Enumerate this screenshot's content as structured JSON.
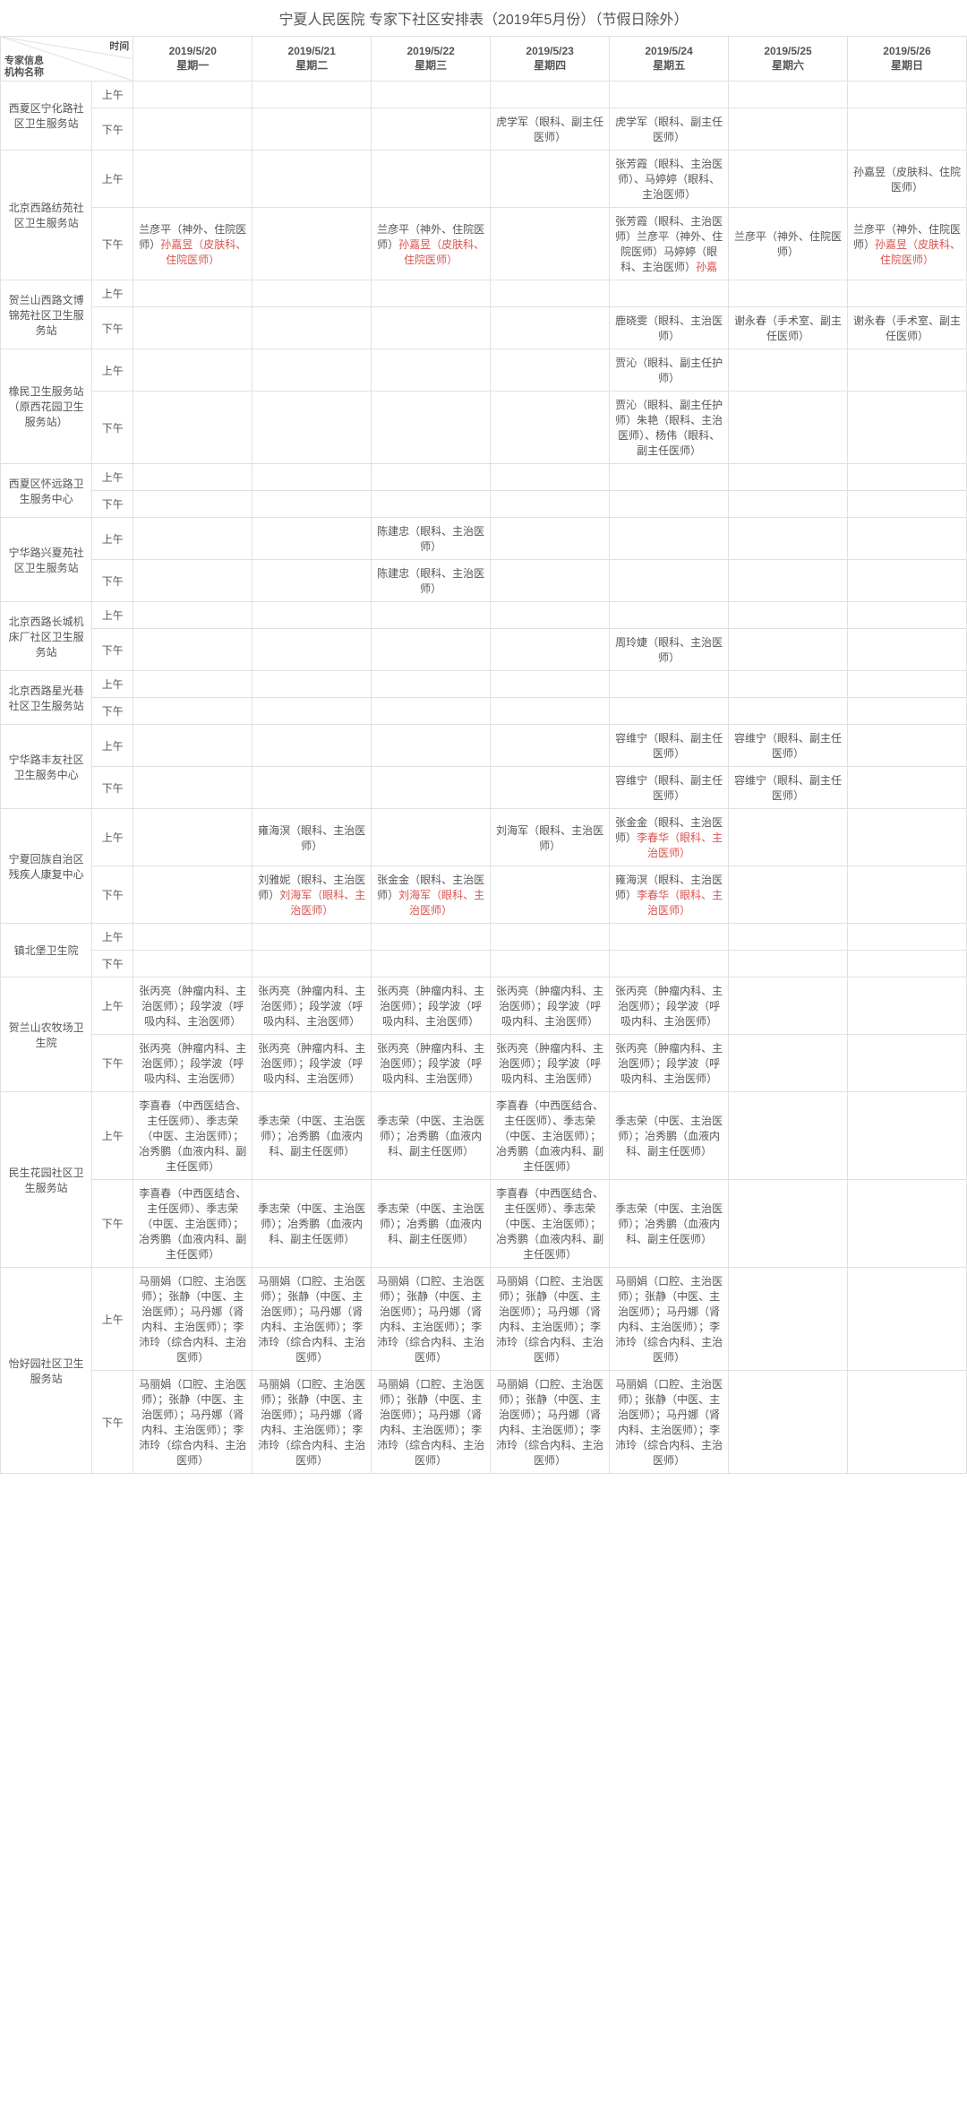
{
  "title": "宁夏人民医院 专家下社区安排表（2019年5月份）（节假日除外）",
  "diagHeader": {
    "topRight": "时间",
    "mid": "专家信息",
    "botLeft": "机构名称"
  },
  "periods": {
    "am": "上午",
    "pm": "下午"
  },
  "dates": [
    {
      "date": "2019/5/20",
      "weekday": "星期一"
    },
    {
      "date": "2019/5/21",
      "weekday": "星期二"
    },
    {
      "date": "2019/5/22",
      "weekday": "星期三"
    },
    {
      "date": "2019/5/23",
      "weekday": "星期四"
    },
    {
      "date": "2019/5/24",
      "weekday": "星期五"
    },
    {
      "date": "2019/5/25",
      "weekday": "星期六"
    },
    {
      "date": "2019/5/26",
      "weekday": "星期日"
    }
  ],
  "orgs": [
    {
      "name": "西夏区宁化路社区卫生服务站",
      "am": [
        "",
        "",
        "",
        "",
        "",
        "",
        ""
      ],
      "pm": [
        "",
        "",
        "",
        "虎学军（眼科、副主任医师）",
        "虎学军（眼科、副主任医师）",
        "",
        ""
      ]
    },
    {
      "name": "北京西路纺苑社区卫生服务站",
      "am": [
        "",
        "",
        "",
        "",
        "张芳霞（眼科、主治医师）、马婷婷（眼科、主治医师）",
        "",
        "孙嘉昱（皮肤科、住院医师）"
      ],
      "pm": [
        [
          {
            "t": "兰彦平（神外、住院医师）"
          },
          {
            "t": "孙嘉昱（皮肤科、住院医师）",
            "r": true
          }
        ],
        "",
        [
          {
            "t": "兰彦平（神外、住院医师）"
          },
          {
            "t": "孙嘉昱（皮肤科、住院医师）",
            "r": true
          }
        ],
        "",
        [
          {
            "t": "张芳霞（眼科、主治医师）兰彦平（神外、住院医师）马婷婷（眼科、主治医师）"
          },
          {
            "t": "孙嘉",
            "r": true
          }
        ],
        "兰彦平（神外、住院医师）",
        [
          {
            "t": "兰彦平（神外、住院医师）"
          },
          {
            "t": "孙嘉昱（皮肤科、住院医师）",
            "r": true
          }
        ]
      ]
    },
    {
      "name": "贺兰山西路文博锦苑社区卫生服务站",
      "am": [
        "",
        "",
        "",
        "",
        "",
        "",
        ""
      ],
      "pm": [
        "",
        "",
        "",
        "",
        "鹿晓雯（眼科、主治医师）",
        "谢永春（手术室、副主任医师）",
        "谢永春（手术室、副主任医师）"
      ]
    },
    {
      "name": "橡民卫生服务站（原西花园卫生服务站）",
      "am": [
        "",
        "",
        "",
        "",
        "贾沁（眼科、副主任护师）",
        "",
        ""
      ],
      "pm": [
        "",
        "",
        "",
        "",
        "贾沁（眼科、副主任护师）朱艳（眼科、主治医师）、杨伟（眼科、副主任医师）",
        "",
        ""
      ]
    },
    {
      "name": "西夏区怀远路卫生服务中心",
      "am": [
        "",
        "",
        "",
        "",
        "",
        "",
        ""
      ],
      "pm": [
        "",
        "",
        "",
        "",
        "",
        "",
        ""
      ]
    },
    {
      "name": "宁华路兴夏苑社区卫生服务站",
      "am": [
        "",
        "",
        "陈建忠（眼科、主治医师）",
        "",
        "",
        "",
        ""
      ],
      "pm": [
        "",
        "",
        "陈建忠（眼科、主治医师）",
        "",
        "",
        "",
        ""
      ]
    },
    {
      "name": "北京西路长城机床厂社区卫生服务站",
      "am": [
        "",
        "",
        "",
        "",
        "",
        "",
        ""
      ],
      "pm": [
        "",
        "",
        "",
        "",
        "周玲婕（眼科、主治医师）",
        "",
        ""
      ]
    },
    {
      "name": "北京西路星光巷社区卫生服务站",
      "am": [
        "",
        "",
        "",
        "",
        "",
        "",
        ""
      ],
      "pm": [
        "",
        "",
        "",
        "",
        "",
        "",
        ""
      ]
    },
    {
      "name": "宁华路丰友社区卫生服务中心",
      "am": [
        "",
        "",
        "",
        "",
        "容维宁（眼科、副主任医师）",
        "容维宁（眼科、副主任医师）",
        ""
      ],
      "pm": [
        "",
        "",
        "",
        "",
        "容维宁（眼科、副主任医师）",
        "容维宁（眼科、副主任医师）",
        ""
      ]
    },
    {
      "name": "宁夏回族自治区残疾人康复中心",
      "am": [
        "",
        "雍海溟（眼科、主治医师）",
        "",
        "刘海军（眼科、主治医师）",
        [
          {
            "t": "张金金（眼科、主治医师）"
          },
          {
            "t": "李春华（眼科、主治医师）",
            "r": true
          }
        ],
        "",
        ""
      ],
      "pm": [
        "",
        [
          {
            "t": "刘雅妮（眼科、主治医师）"
          },
          {
            "t": "刘海军（眼科、主治医师）",
            "r": true
          }
        ],
        [
          {
            "t": "张金金（眼科、主治医师）"
          },
          {
            "t": "刘海军（眼科、主治医师）",
            "r": true
          }
        ],
        "",
        [
          {
            "t": "雍海溟（眼科、主治医师）"
          },
          {
            "t": "李春华（眼科、主治医师）",
            "r": true
          }
        ],
        "",
        ""
      ]
    },
    {
      "name": "镇北堡卫生院",
      "am": [
        "",
        "",
        "",
        "",
        "",
        "",
        ""
      ],
      "pm": [
        "",
        "",
        "",
        "",
        "",
        "",
        ""
      ]
    },
    {
      "name": "贺兰山农牧场卫生院",
      "am": [
        "张丙亮（肿瘤内科、主治医师）；段学波（呼吸内科、主治医师）",
        "张丙亮（肿瘤内科、主治医师）；段学波（呼吸内科、主治医师）",
        "张丙亮（肿瘤内科、主治医师）；段学波（呼吸内科、主治医师）",
        "张丙亮（肿瘤内科、主治医师）；段学波（呼吸内科、主治医师）",
        "张丙亮（肿瘤内科、主治医师）；段学波（呼吸内科、主治医师）",
        "",
        ""
      ],
      "pm": [
        "张丙亮（肿瘤内科、主治医师）；段学波（呼吸内科、主治医师）",
        "张丙亮（肿瘤内科、主治医师）；段学波（呼吸内科、主治医师）",
        "张丙亮（肿瘤内科、主治医师）；段学波（呼吸内科、主治医师）",
        "张丙亮（肿瘤内科、主治医师）；段学波（呼吸内科、主治医师）",
        "张丙亮（肿瘤内科、主治医师）；段学波（呼吸内科、主治医师）",
        "",
        ""
      ]
    },
    {
      "name": "民生花园社区卫生服务站",
      "am": [
        "李喜春（中西医结合、主任医师）、季志荣（中医、主治医师）；冶秀鹏（血液内科、副主任医师）",
        "季志荣（中医、主治医师）；冶秀鹏（血液内科、副主任医师）",
        "季志荣（中医、主治医师）；冶秀鹏（血液内科、副主任医师）",
        "李喜春（中西医结合、主任医师）、季志荣（中医、主治医师）；冶秀鹏（血液内科、副主任医师）",
        "季志荣（中医、主治医师）；冶秀鹏（血液内科、副主任医师）",
        "",
        ""
      ],
      "pm": [
        "李喜春（中西医结合、主任医师）、季志荣（中医、主治医师）；冶秀鹏（血液内科、副主任医师）",
        "季志荣（中医、主治医师）；冶秀鹏（血液内科、副主任医师）",
        "季志荣（中医、主治医师）；冶秀鹏（血液内科、副主任医师）",
        "李喜春（中西医结合、主任医师）、季志荣（中医、主治医师）；冶秀鹏（血液内科、副主任医师）",
        "季志荣（中医、主治医师）；冶秀鹏（血液内科、副主任医师）",
        "",
        ""
      ]
    },
    {
      "name": "怡好园社区卫生服务站",
      "am": [
        "马丽娟（口腔、主治医师）；张静（中医、主治医师）；马丹娜（肾内科、主治医师）；李沛玲（综合内科、主治医师）",
        "马丽娟（口腔、主治医师）；张静（中医、主治医师）；马丹娜（肾内科、主治医师）；李沛玲（综合内科、主治医师）",
        "马丽娟（口腔、主治医师）；张静（中医、主治医师）；马丹娜（肾内科、主治医师）；李沛玲（综合内科、主治医师）",
        "马丽娟（口腔、主治医师）；张静（中医、主治医师）；马丹娜（肾内科、主治医师）；李沛玲（综合内科、主治医师）",
        "马丽娟（口腔、主治医师）；张静（中医、主治医师）；马丹娜（肾内科、主治医师）；李沛玲（综合内科、主治医师）",
        "",
        ""
      ],
      "pm": [
        "马丽娟（口腔、主治医师）；张静（中医、主治医师）；马丹娜（肾内科、主治医师）；李沛玲（综合内科、主治医师）",
        "马丽娟（口腔、主治医师）；张静（中医、主治医师）；马丹娜（肾内科、主治医师）；李沛玲（综合内科、主治医师）",
        "马丽娟（口腔、主治医师）；张静（中医、主治医师）；马丹娜（肾内科、主治医师）；李沛玲（综合内科、主治医师）",
        "马丽娟（口腔、主治医师）；张静（中医、主治医师）；马丹娜（肾内科、主治医师）；李沛玲（综合内科、主治医师）",
        "马丽娟（口腔、主治医师）；张静（中医、主治医师）；马丹娜（肾内科、主治医师）；李沛玲（综合内科、主治医师）",
        "",
        ""
      ]
    }
  ]
}
